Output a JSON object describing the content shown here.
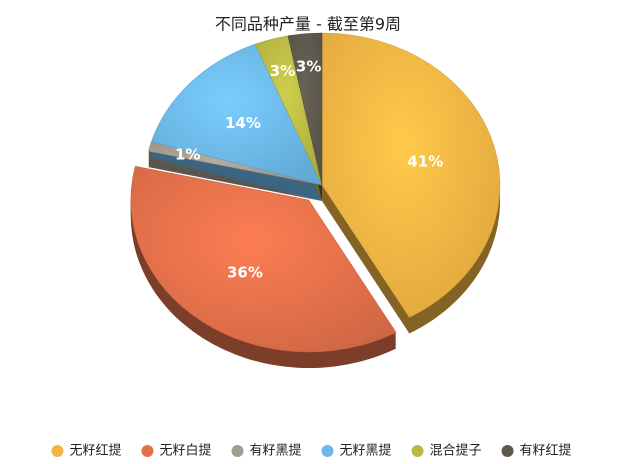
{
  "chart_data": {
    "type": "pie",
    "title": "不同品种产量 - 截至第9周",
    "categories": [
      "无籽红提",
      "无籽白提",
      "有籽黑提",
      "无籽黑提",
      "混合提子",
      "有籽红提"
    ],
    "values": [
      41,
      36,
      1,
      14,
      3,
      3
    ],
    "value_labels": [
      "41%",
      "36%",
      "1%",
      "14%",
      "3%",
      "3%"
    ],
    "colors": [
      "#f2b443",
      "#e2704a",
      "#a39d90",
      "#6cb8e8",
      "#b9b945",
      "#5e584d"
    ],
    "exploded": [
      1
    ],
    "legend": "bottom"
  }
}
